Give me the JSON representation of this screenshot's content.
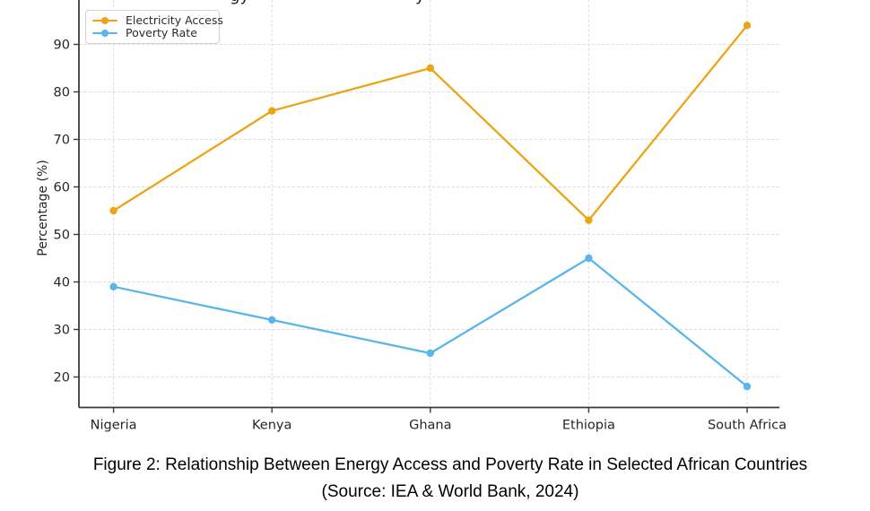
{
  "chart_data": {
    "type": "line",
    "categories": [
      "Nigeria",
      "Kenya",
      "Ghana",
      "Ethiopia",
      "South Africa"
    ],
    "series": [
      {
        "name": "Electricity Access",
        "color": "#ECA414",
        "values": [
          55,
          76,
          85,
          53,
          94
        ]
      },
      {
        "name": "Poverty Rate",
        "color": "#5AB5EA",
        "values": [
          39,
          32,
          25,
          45,
          18
        ]
      }
    ],
    "xlabel": "",
    "ylabel": "Percentage (%)",
    "yticks": [
      20,
      30,
      40,
      50,
      60,
      70,
      80,
      90
    ],
    "ylim_visible": [
      13.5,
      99
    ],
    "grid": "dashed both axes",
    "legend_position": "upper-left",
    "marker": "circle",
    "title_cropped_fragments": [
      "gy",
      "y"
    ],
    "axis_color": "#3a3a3a",
    "grid_color": "#dbdbdb",
    "tick_text_color": "#262626"
  },
  "caption": {
    "line1": "Figure 2: Relationship Between Energy Access and Poverty Rate in Selected African Countries",
    "line2": "(Source: IEA & World Bank, 2024)"
  }
}
